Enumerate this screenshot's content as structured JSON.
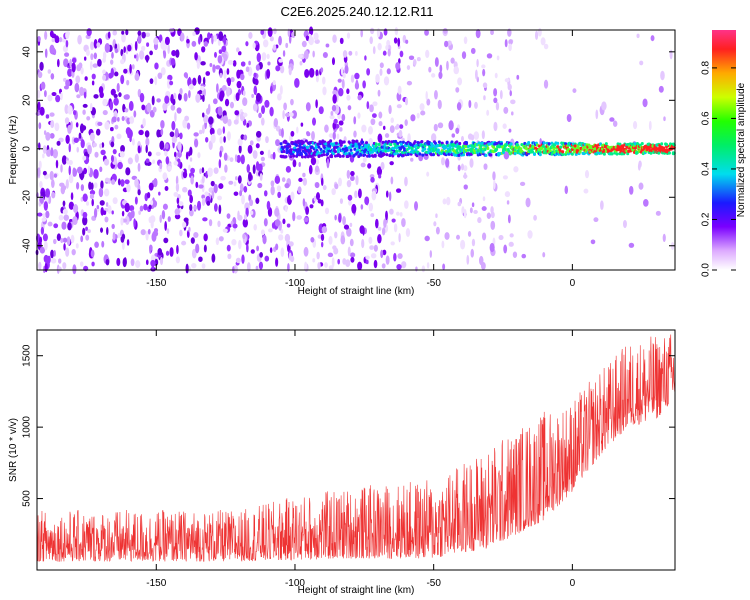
{
  "title": "C2E6.2025.240.12.12.R11",
  "colors": {
    "signal": "#ee3333",
    "axis": "#000000"
  },
  "chart_data": [
    {
      "type": "heatmap",
      "name": "spectrogram",
      "xlabel": "Height of straight line (km)",
      "ylabel": "Frequency (Hz)",
      "xlim": [
        -193,
        37
      ],
      "ylim": [
        -50,
        49
      ],
      "xticks": [
        -150,
        -100,
        -50,
        0
      ],
      "yticks": [
        -40,
        -20,
        0,
        20,
        40
      ],
      "description_series": [
        {
          "name": "noise_floor_x_range",
          "values": [
            -193,
            -20
          ]
        },
        {
          "name": "signal_onset_km",
          "values": [
            -105
          ]
        },
        {
          "name": "signal_center_freq_hz",
          "values": [
            0
          ]
        }
      ],
      "colorbar": {
        "label": "Normalized spectral amplitude",
        "range": [
          0.0,
          0.95
        ],
        "ticks": [
          "0.0",
          "0.2",
          "0.4",
          "0.6",
          "0.8"
        ]
      }
    },
    {
      "type": "line",
      "name": "snr",
      "xlabel": "Height of straight line (km)",
      "ylabel": "SNR (10 * v/v)",
      "xlim": [
        -193,
        37
      ],
      "ylim": [
        0,
        1680
      ],
      "xticks": [
        -150,
        -100,
        -50,
        0
      ],
      "yticks": [
        500,
        1000,
        1500
      ],
      "series": [
        {
          "name": "SNR envelope",
          "x": [
            -193,
            -160,
            -120,
            -100,
            -80,
            -60,
            -50,
            -40,
            -30,
            -20,
            -10,
            0,
            10,
            20,
            30,
            37
          ],
          "y_low": [
            60,
            60,
            60,
            70,
            80,
            80,
            80,
            120,
            150,
            250,
            350,
            550,
            800,
            1000,
            1050,
            1200
          ],
          "y_high": [
            420,
            420,
            420,
            520,
            580,
            620,
            640,
            750,
            870,
            1000,
            1120,
            1200,
            1400,
            1600,
            1650,
            1680
          ]
        }
      ]
    }
  ]
}
